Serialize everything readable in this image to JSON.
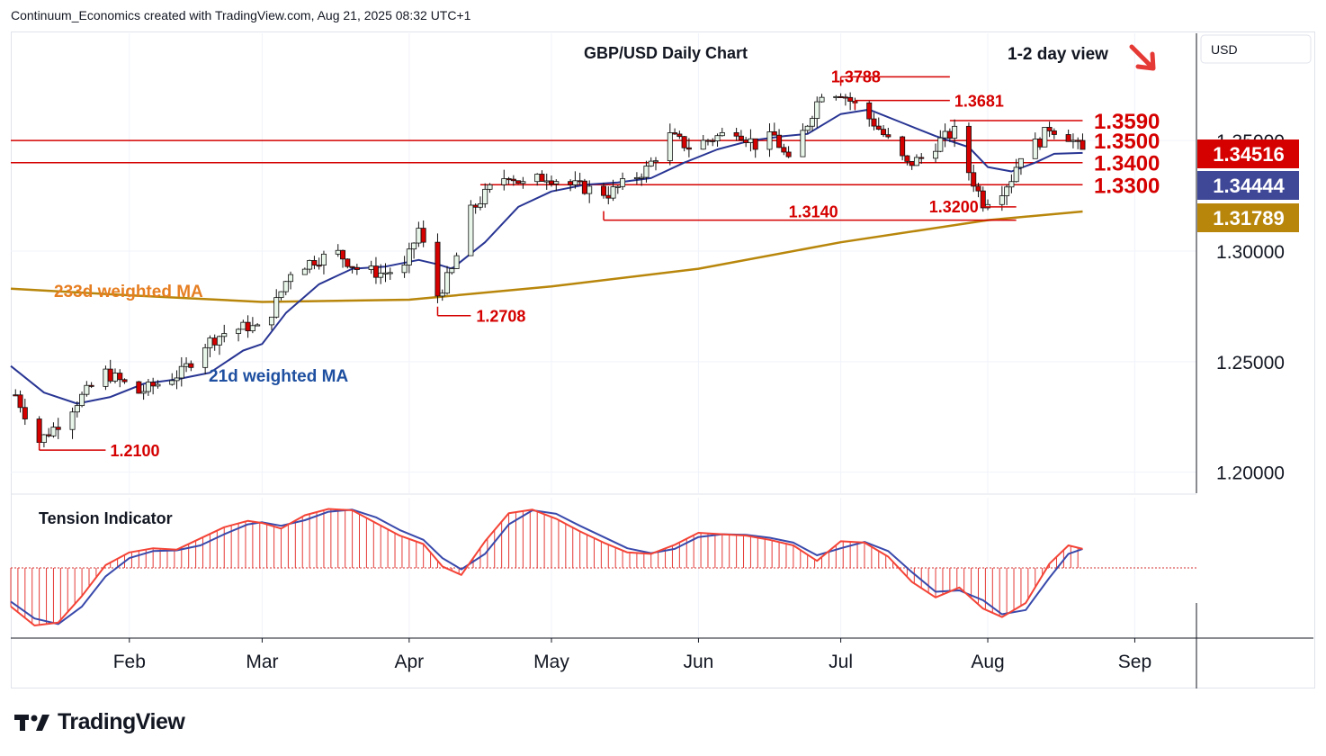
{
  "header": {
    "text": "Continuum_Economics created with TradingView.com, Aug 21, 2025 08:32 UTC+1"
  },
  "branding": {
    "logo_text": "TradingView",
    "logo_icon": "tradingview-logo-icon"
  },
  "colors": {
    "up_candle": "#e8f5e9",
    "down_candle": "#d50000",
    "wick": "#111111",
    "level_line": "#d50000",
    "ma21": "#283593",
    "ma233": "#b8860b",
    "tension_fast": "#f44336",
    "tension_slow": "#3949ab",
    "price_badge": "#d50000",
    "ma21_badge": "#3f4797",
    "ma233_badge": "#b8860b"
  },
  "chart_data": {
    "type": "candlestick",
    "title": "GBP/USD Daily Chart",
    "view_label": "1-2 day view",
    "view_arrow": "down-right-arrow-icon",
    "currency": "USD",
    "price_axis": {
      "ticks": [
        "1.35000",
        "1.30000",
        "1.25000",
        "1.20000"
      ],
      "tick_values": [
        1.35,
        1.3,
        1.25,
        1.2
      ],
      "range": [
        1.1905,
        1.3985
      ]
    },
    "time_axis": {
      "ticks": [
        "Feb",
        "Mar",
        "Apr",
        "May",
        "Jun",
        "Jul",
        "Aug",
        "Sep"
      ],
      "tick_dates": [
        "2025-02-01",
        "2025-03-01",
        "2025-04-01",
        "2025-05-01",
        "2025-06-01",
        "2025-07-01",
        "2025-08-01",
        "2025-09-01"
      ],
      "range": [
        "2025-01-07",
        "2025-09-14"
      ]
    },
    "horizontal_levels": [
      {
        "label": "1.3590",
        "value": 1.359,
        "from": "2025-07-24",
        "to": "2025-08-21"
      },
      {
        "label": "1.3500",
        "value": 1.35,
        "from": "2025-01-07",
        "to": "2025-08-21"
      },
      {
        "label": "1.3400",
        "value": 1.34,
        "from": "2025-01-07",
        "to": "2025-08-21"
      },
      {
        "label": "1.3300",
        "value": 1.33,
        "from": "2025-04-16",
        "to": "2025-08-21"
      }
    ],
    "swing_annotations": [
      {
        "label": "1.3788",
        "value": 1.3788,
        "date": "2025-07-01",
        "line_to": "2025-07-24"
      },
      {
        "label": "1.3681",
        "value": 1.3681,
        "date": "2025-07-04",
        "line_to": "2025-07-24"
      },
      {
        "label": "1.3200",
        "value": 1.32,
        "date": "2025-07-31",
        "line_to": "2025-08-07"
      },
      {
        "label": "1.3140",
        "value": 1.314,
        "date": "2025-05-12",
        "line_to": "2025-08-07"
      },
      {
        "label": "1.2708",
        "value": 1.2708,
        "date": "2025-04-07",
        "line_to": "2025-04-14"
      },
      {
        "label": "1.2100",
        "value": 1.21,
        "date": "2025-01-13",
        "line_to": "2025-01-27"
      }
    ],
    "indicator_labels": {
      "ma233": "233d weighted MA",
      "ma21": "21d weighted MA",
      "tension": "Tension Indicator"
    },
    "price_badges": [
      {
        "name": "last-price",
        "value": "1.34516",
        "level": 1.34516
      },
      {
        "name": "ma21",
        "value": "1.34444",
        "level": 1.34444
      },
      {
        "name": "ma233",
        "value": "1.31789",
        "level": 1.31789
      }
    ],
    "price_path": [
      [
        "2025-01-08",
        1.235
      ],
      [
        "2025-01-13",
        1.214
      ],
      [
        "2025-01-17",
        1.222
      ],
      [
        "2025-01-21",
        1.232
      ],
      [
        "2025-01-27",
        1.245
      ],
      [
        "2025-01-31",
        1.24
      ],
      [
        "2025-02-03",
        1.236
      ],
      [
        "2025-02-07",
        1.24
      ],
      [
        "2025-02-12",
        1.245
      ],
      [
        "2025-02-17",
        1.258
      ],
      [
        "2025-02-21",
        1.263
      ],
      [
        "2025-02-26",
        1.266
      ],
      [
        "2025-03-01",
        1.264
      ],
      [
        "2025-03-04",
        1.277
      ],
      [
        "2025-03-07",
        1.291
      ],
      [
        "2025-03-12",
        1.296
      ],
      [
        "2025-03-17",
        1.299
      ],
      [
        "2025-03-21",
        1.292
      ],
      [
        "2025-03-26",
        1.29
      ],
      [
        "2025-03-31",
        1.292
      ],
      [
        "2025-04-03",
        1.31
      ],
      [
        "2025-04-07",
        1.28
      ],
      [
        "2025-04-10",
        1.291
      ],
      [
        "2025-04-14",
        1.318
      ],
      [
        "2025-04-18",
        1.328
      ],
      [
        "2025-04-22",
        1.335
      ],
      [
        "2025-04-25",
        1.33
      ],
      [
        "2025-04-30",
        1.334
      ],
      [
        "2025-05-05",
        1.33
      ],
      [
        "2025-05-09",
        1.328
      ],
      [
        "2025-05-13",
        1.326
      ],
      [
        "2025-05-16",
        1.33
      ],
      [
        "2025-05-21",
        1.337
      ],
      [
        "2025-05-26",
        1.352
      ],
      [
        "2025-05-30",
        1.347
      ],
      [
        "2025-06-04",
        1.351
      ],
      [
        "2025-06-09",
        1.355
      ],
      [
        "2025-06-13",
        1.348
      ],
      [
        "2025-06-17",
        1.352
      ],
      [
        "2025-06-20",
        1.34
      ],
      [
        "2025-06-24",
        1.358
      ],
      [
        "2025-06-27",
        1.372
      ],
      [
        "2025-07-01",
        1.372
      ],
      [
        "2025-07-04",
        1.366
      ],
      [
        "2025-07-08",
        1.358
      ],
      [
        "2025-07-11",
        1.35
      ],
      [
        "2025-07-15",
        1.339
      ],
      [
        "2025-07-18",
        1.342
      ],
      [
        "2025-07-22",
        1.35
      ],
      [
        "2025-07-25",
        1.354
      ],
      [
        "2025-07-28",
        1.336
      ],
      [
        "2025-07-31",
        1.322
      ],
      [
        "2025-08-04",
        1.328
      ],
      [
        "2025-08-06",
        1.333
      ],
      [
        "2025-08-08",
        1.344
      ],
      [
        "2025-08-12",
        1.35
      ],
      [
        "2025-08-14",
        1.356
      ],
      [
        "2025-08-18",
        1.352
      ],
      [
        "2025-08-21",
        1.345
      ]
    ],
    "ma21_path": [
      [
        "2025-01-07",
        1.248
      ],
      [
        "2025-01-14",
        1.236
      ],
      [
        "2025-01-21",
        1.231
      ],
      [
        "2025-01-28",
        1.234
      ],
      [
        "2025-02-04",
        1.24
      ],
      [
        "2025-02-11",
        1.242
      ],
      [
        "2025-02-18",
        1.245
      ],
      [
        "2025-02-25",
        1.255
      ],
      [
        "2025-03-01",
        1.258
      ],
      [
        "2025-03-06",
        1.272
      ],
      [
        "2025-03-13",
        1.285
      ],
      [
        "2025-03-20",
        1.292
      ],
      [
        "2025-03-27",
        1.293
      ],
      [
        "2025-04-03",
        1.296
      ],
      [
        "2025-04-07",
        1.294
      ],
      [
        "2025-04-10",
        1.292
      ],
      [
        "2025-04-17",
        1.304
      ],
      [
        "2025-04-24",
        1.32
      ],
      [
        "2025-05-01",
        1.327
      ],
      [
        "2025-05-08",
        1.33
      ],
      [
        "2025-05-15",
        1.331
      ],
      [
        "2025-05-22",
        1.333
      ],
      [
        "2025-05-29",
        1.34
      ],
      [
        "2025-06-05",
        1.346
      ],
      [
        "2025-06-12",
        1.35
      ],
      [
        "2025-06-19",
        1.352
      ],
      [
        "2025-06-24",
        1.353
      ],
      [
        "2025-07-01",
        1.362
      ],
      [
        "2025-07-07",
        1.364
      ],
      [
        "2025-07-14",
        1.358
      ],
      [
        "2025-07-21",
        1.352
      ],
      [
        "2025-07-28",
        1.347
      ],
      [
        "2025-08-01",
        1.338
      ],
      [
        "2025-08-06",
        1.336
      ],
      [
        "2025-08-11",
        1.34
      ],
      [
        "2025-08-15",
        1.344
      ],
      [
        "2025-08-21",
        1.3444
      ]
    ],
    "ma233_path": [
      [
        "2025-01-07",
        1.283
      ],
      [
        "2025-02-01",
        1.28
      ],
      [
        "2025-03-01",
        1.277
      ],
      [
        "2025-04-01",
        1.278
      ],
      [
        "2025-05-01",
        1.284
      ],
      [
        "2025-06-01",
        1.292
      ],
      [
        "2025-07-01",
        1.304
      ],
      [
        "2025-08-01",
        1.314
      ],
      [
        "2025-08-21",
        1.3179
      ]
    ],
    "tension_indicator": {
      "baseline": 0,
      "range": [
        -1.0,
        1.0
      ],
      "fast_path": [
        [
          "2025-01-07",
          -0.55
        ],
        [
          "2025-01-12",
          -0.82
        ],
        [
          "2025-01-17",
          -0.78
        ],
        [
          "2025-01-22",
          -0.4
        ],
        [
          "2025-01-27",
          0.04
        ],
        [
          "2025-02-01",
          0.22
        ],
        [
          "2025-02-06",
          0.28
        ],
        [
          "2025-02-11",
          0.26
        ],
        [
          "2025-02-16",
          0.42
        ],
        [
          "2025-02-21",
          0.58
        ],
        [
          "2025-02-26",
          0.67
        ],
        [
          "2025-03-01",
          0.64
        ],
        [
          "2025-03-05",
          0.56
        ],
        [
          "2025-03-10",
          0.75
        ],
        [
          "2025-03-15",
          0.84
        ],
        [
          "2025-03-20",
          0.82
        ],
        [
          "2025-03-25",
          0.64
        ],
        [
          "2025-03-30",
          0.46
        ],
        [
          "2025-04-04",
          0.34
        ],
        [
          "2025-04-08",
          0.02
        ],
        [
          "2025-04-12",
          -0.1
        ],
        [
          "2025-04-17",
          0.38
        ],
        [
          "2025-04-22",
          0.78
        ],
        [
          "2025-04-27",
          0.83
        ],
        [
          "2025-05-02",
          0.7
        ],
        [
          "2025-05-07",
          0.52
        ],
        [
          "2025-05-12",
          0.36
        ],
        [
          "2025-05-17",
          0.22
        ],
        [
          "2025-05-22",
          0.2
        ],
        [
          "2025-05-27",
          0.33
        ],
        [
          "2025-06-01",
          0.5
        ],
        [
          "2025-06-06",
          0.48
        ],
        [
          "2025-06-11",
          0.46
        ],
        [
          "2025-06-16",
          0.4
        ],
        [
          "2025-06-21",
          0.32
        ],
        [
          "2025-06-26",
          0.1
        ],
        [
          "2025-07-01",
          0.38
        ],
        [
          "2025-07-06",
          0.36
        ],
        [
          "2025-07-11",
          0.16
        ],
        [
          "2025-07-16",
          -0.2
        ],
        [
          "2025-07-21",
          -0.42
        ],
        [
          "2025-07-26",
          -0.28
        ],
        [
          "2025-07-31",
          -0.58
        ],
        [
          "2025-08-04",
          -0.7
        ],
        [
          "2025-08-09",
          -0.5
        ],
        [
          "2025-08-14",
          0.06
        ],
        [
          "2025-08-18",
          0.32
        ],
        [
          "2025-08-21",
          0.27
        ]
      ],
      "slow_path": [
        [
          "2025-01-07",
          -0.48
        ],
        [
          "2025-01-12",
          -0.72
        ],
        [
          "2025-01-17",
          -0.8
        ],
        [
          "2025-01-22",
          -0.55
        ],
        [
          "2025-01-27",
          -0.12
        ],
        [
          "2025-02-01",
          0.14
        ],
        [
          "2025-02-06",
          0.24
        ],
        [
          "2025-02-11",
          0.25
        ],
        [
          "2025-02-16",
          0.32
        ],
        [
          "2025-02-21",
          0.48
        ],
        [
          "2025-02-26",
          0.62
        ],
        [
          "2025-03-01",
          0.65
        ],
        [
          "2025-03-05",
          0.6
        ],
        [
          "2025-03-10",
          0.68
        ],
        [
          "2025-03-15",
          0.8
        ],
        [
          "2025-03-20",
          0.83
        ],
        [
          "2025-03-25",
          0.72
        ],
        [
          "2025-03-30",
          0.54
        ],
        [
          "2025-04-04",
          0.4
        ],
        [
          "2025-04-08",
          0.14
        ],
        [
          "2025-04-12",
          -0.02
        ],
        [
          "2025-04-17",
          0.2
        ],
        [
          "2025-04-22",
          0.62
        ],
        [
          "2025-04-27",
          0.82
        ],
        [
          "2025-05-02",
          0.77
        ],
        [
          "2025-05-07",
          0.6
        ],
        [
          "2025-05-12",
          0.44
        ],
        [
          "2025-05-17",
          0.28
        ],
        [
          "2025-05-22",
          0.21
        ],
        [
          "2025-05-27",
          0.27
        ],
        [
          "2025-06-01",
          0.44
        ],
        [
          "2025-06-06",
          0.48
        ],
        [
          "2025-06-11",
          0.47
        ],
        [
          "2025-06-16",
          0.43
        ],
        [
          "2025-06-21",
          0.36
        ],
        [
          "2025-06-26",
          0.18
        ],
        [
          "2025-07-01",
          0.28
        ],
        [
          "2025-07-06",
          0.37
        ],
        [
          "2025-07-11",
          0.24
        ],
        [
          "2025-07-16",
          -0.06
        ],
        [
          "2025-07-21",
          -0.34
        ],
        [
          "2025-07-26",
          -0.32
        ],
        [
          "2025-07-31",
          -0.46
        ],
        [
          "2025-08-04",
          -0.66
        ],
        [
          "2025-08-09",
          -0.6
        ],
        [
          "2025-08-14",
          -0.14
        ],
        [
          "2025-08-18",
          0.2
        ],
        [
          "2025-08-21",
          0.27
        ]
      ]
    },
    "grid": true,
    "legend": "none"
  }
}
